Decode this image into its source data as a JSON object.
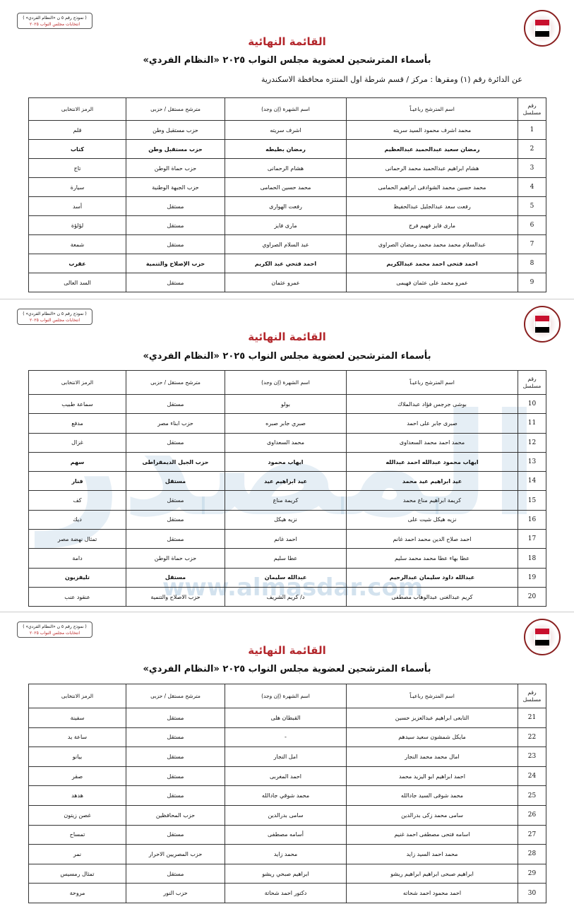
{
  "form_box": {
    "line1": "( نموذج رقم ٥ ن «النظام الفردي» )",
    "line2": "انتخابات مجلس النواب ٢٠٢٥"
  },
  "title": "القائمة النهائية",
  "subtitle": "بأسماء المترشحين لعضوية مجلس النواب ٢٠٢٥ «النظام الفردي»",
  "district": "عن الدائرة رقم  (١)   ومقرها : مركز / قسم شرطة  اول المنتزه   محافظة  الاسكندرية",
  "columns": {
    "num": "رقم مسلسل",
    "name": "اسم المترشح رباعيـاً",
    "fame": "اسم الشهرة (إن وجد)",
    "status": "مترشح مستقل / حزبى",
    "symbol": "الرمز الانتخابى"
  },
  "watermark": {
    "logo_text": "المصدر",
    "url": "www.almasdar.com"
  },
  "colors": {
    "title": "#b3262b",
    "watermark": "#6ea0c8"
  },
  "pages": [
    {
      "rows": [
        {
          "num": "1",
          "name": "محمد اشرف محمود السيد سريته",
          "fame": "اشرف سريته",
          "status": "حزب مستقبل وطن",
          "symbol": "قلم"
        },
        {
          "num": "2",
          "name": "رمضان سعيد عبدالحميد عبدالعظيم",
          "fame": "رمضان بطيطه",
          "status": "حزب مستقبل وطن",
          "symbol": "كتاب"
        },
        {
          "num": "3",
          "name": "هشام ابراهيم عبدالحميد محمد الرحمانى",
          "fame": "هشام الرحمانى",
          "status": "حزب حماة الوطن",
          "symbol": "تاج"
        },
        {
          "num": "4",
          "name": "محمد حسين محمد الشوادفى ابراهيم الحمامى",
          "fame": "محمد حسين الحمامى",
          "status": "حزب الجبهة الوطنية",
          "symbol": "سيارة"
        },
        {
          "num": "5",
          "name": "رفعت سعد عبدالجليل عبدالحفيظ",
          "fame": "رفعت الهوارى",
          "status": "مستقل",
          "symbol": "أسد"
        },
        {
          "num": "6",
          "name": "مارى فايز فهيم فرج",
          "fame": "مارى فايز",
          "status": "مستقل",
          "symbol": "لؤلؤة"
        },
        {
          "num": "7",
          "name": "عبدالسلام محمد محمد محمد رمضان الصراوى",
          "fame": "عبد السلام الصراوي",
          "status": "مستقل",
          "symbol": "شمعة"
        },
        {
          "num": "8",
          "name": "احمد فتحى احمد محمد عبدالكريم",
          "fame": "احمد فتحي عبد الكريم",
          "status": "حزب الإصلاح والتنمية",
          "symbol": "عقرب"
        },
        {
          "num": "9",
          "name": "عمرو محمد على عثمان فهيمى",
          "fame": "عمرو عثمان",
          "status": "مستقل",
          "symbol": "السد العالى"
        }
      ]
    },
    {
      "rows": [
        {
          "num": "10",
          "name": "بوشى جرجس فؤاد عبدالملاك",
          "fame": "بولو",
          "status": "مستقل",
          "symbol": "سماعة طبيب"
        },
        {
          "num": "11",
          "name": "صبرى جابر على احمد",
          "fame": "صبري جابر صبره",
          "status": "حزب ابناء مصر",
          "symbol": "مدفع"
        },
        {
          "num": "12",
          "name": "محمد احمد محمد السعداوى",
          "fame": "محمد السعداوى",
          "status": "مستقل",
          "symbol": "غزال"
        },
        {
          "num": "13",
          "name": "ايهاب محمود عبدالله احمد عبدالله",
          "fame": "ايهاب محمود",
          "status": "حزب الجيل الديمقراطى",
          "symbol": "سهم"
        },
        {
          "num": "14",
          "name": "عيد ابراهيم عيد محمد",
          "fame": "عيد ابراهيم عيد",
          "status": "مستقل",
          "symbol": "فنار"
        },
        {
          "num": "15",
          "name": "كريمة ابراهيم مناع محمد",
          "fame": "كريمة مناع",
          "status": "مستقل",
          "symbol": "كف"
        },
        {
          "num": "16",
          "name": "نزيه هيكل شيت على",
          "fame": "نزيه هيكل",
          "status": "مستقل",
          "symbol": "ديك"
        },
        {
          "num": "17",
          "name": "احمد صلاح الدين محمد احمد غانم",
          "fame": "احمد غانم",
          "status": "مستقل",
          "symbol": "تمثال نهضة مصر"
        },
        {
          "num": "18",
          "name": "عطا بهاء عطا محمد محمد سليم",
          "fame": "عطا سليم",
          "status": "حزب حماة الوطن",
          "symbol": "دامة"
        },
        {
          "num": "19",
          "name": "عبدالله داود سليمان عبدالرحيم",
          "fame": "عبدالله سليمان",
          "status": "مستقل",
          "symbol": "تليفزيون"
        },
        {
          "num": "20",
          "name": "كريم عبدالغنى عبدالوهاب مصطفى",
          "fame": "د/ كريم الشريف",
          "status": "حزب الاصلاح والتنمية",
          "symbol": "عنقود عنب"
        }
      ]
    },
    {
      "rows": [
        {
          "num": "21",
          "name": "التابعى ابراهيم عبدالعزيز حسين",
          "fame": "القبطان هلى",
          "status": "مستقل",
          "symbol": "سفينة"
        },
        {
          "num": "22",
          "name": "مايكل شمشون سعيد سيدهم",
          "fame": "-",
          "status": "مستقل",
          "symbol": "ساعة يد"
        },
        {
          "num": "23",
          "name": "امال محمد محمد النجار",
          "fame": "امل النجار",
          "status": "مستقل",
          "symbol": "بيانو"
        },
        {
          "num": "24",
          "name": "احمد ابراهيم ابو اليزيد محمد",
          "fame": "احمد المغربى",
          "status": "مستقل",
          "symbol": "صقر"
        },
        {
          "num": "25",
          "name": "محمد شوقى السيد جادالله",
          "fame": "محمد شوقي جادالله",
          "status": "مستقل",
          "symbol": "هدهد"
        },
        {
          "num": "26",
          "name": "سامى محمد زكى بدرالدين",
          "fame": "سامى بدرالدين",
          "status": "حزب المحافظين",
          "symbol": "غصن زيتون"
        },
        {
          "num": "27",
          "name": "اسامه فتحى مصطفى احمد غنيم",
          "fame": "أسامه مصطفى",
          "status": "مستقل",
          "symbol": "تمساح"
        },
        {
          "num": "28",
          "name": "محمد احمد السيد زايد",
          "fame": "محمد زايد",
          "status": "حزب المصريين الاحرار",
          "symbol": "نمر"
        },
        {
          "num": "29",
          "name": "ابراهيم صبحى ابراهيم ابراهيم ريشو",
          "fame": "ابراهيم صبحي ريشو",
          "status": "مستقل",
          "symbol": "تمثال رمسيس"
        },
        {
          "num": "30",
          "name": "احمد محمود احمد شحاته",
          "fame": "دكتور احمد شحاتة",
          "status": "حزب النور",
          "symbol": "مروحة"
        }
      ]
    }
  ]
}
